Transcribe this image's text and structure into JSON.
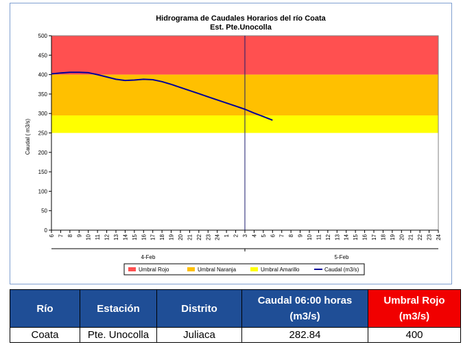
{
  "chart_data": {
    "type": "line",
    "title": "Hidrograma de Caudales Horarios del río Coata",
    "subtitle": "Est. Pte.Unocolla",
    "ylabel": "Caudal  ( m3/s)",
    "xlabel": "",
    "ylim": [
      0,
      500
    ],
    "yticks": [
      "0",
      "50",
      "100",
      "150",
      "200",
      "250",
      "300",
      "350",
      "400",
      "450",
      "500"
    ],
    "xticks": [
      "6",
      "7",
      "8",
      "9",
      "10",
      "11",
      "12",
      "13",
      "14",
      "15",
      "16",
      "17",
      "18",
      "19",
      "20",
      "21",
      "22",
      "23",
      "24",
      "1",
      "2",
      "3",
      "4",
      "5",
      "6",
      "7",
      "8",
      "9",
      "10",
      "11",
      "12",
      "13",
      "14",
      "15",
      "16",
      "17",
      "18",
      "19",
      "20",
      "21",
      "22",
      "23",
      "24"
    ],
    "date_groups": [
      "4-Feb",
      "5-Feb"
    ],
    "bands": [
      {
        "name": "Umbral Rojo",
        "from": 400,
        "to": 500,
        "color": "#ff5050"
      },
      {
        "name": "Umbral Naranja",
        "from": 295,
        "to": 400,
        "color": "#ffc000"
      },
      {
        "name": "Umbral Amarillo",
        "from": 250,
        "to": 295,
        "color": "#ffff00"
      }
    ],
    "series": [
      {
        "name": "Caudal (m3/s)",
        "color": "#000099",
        "x": [
          "4-Feb 06:00",
          "4-Feb 07:00",
          "4-Feb 08:00",
          "4-Feb 09:00",
          "4-Feb 10:00",
          "4-Feb 11:00",
          "4-Feb 12:00",
          "4-Feb 13:00",
          "4-Feb 14:00",
          "4-Feb 15:00",
          "4-Feb 16:00",
          "4-Feb 17:00",
          "4-Feb 18:00",
          "4-Feb 19:00",
          "4-Feb 20:00",
          "4-Feb 21:00",
          "4-Feb 22:00",
          "4-Feb 23:00",
          "4-Feb 24:00",
          "5-Feb 01:00",
          "5-Feb 02:00",
          "5-Feb 03:00",
          "5-Feb 04:00",
          "5-Feb 05:00",
          "5-Feb 06:00"
        ],
        "values": [
          402,
          404,
          406,
          406,
          405,
          400,
          394,
          388,
          385,
          386,
          388,
          387,
          382,
          375,
          367,
          359,
          351,
          343,
          335,
          327,
          319,
          311,
          301,
          292,
          282.84
        ]
      }
    ],
    "legend_position": "bottom"
  },
  "table": {
    "headers": [
      "Río",
      "Estación",
      "Distrito",
      "Caudal  06:00 horas (m3/s)",
      "Umbral Rojo (m3/s)"
    ],
    "row": [
      "Coata",
      "Pte. Unocolla",
      "Juliaca",
      "282.84",
      "400"
    ]
  },
  "colors": {
    "header_blue": "#1f4e96",
    "header_red": "#f10000",
    "line": "#000099"
  }
}
